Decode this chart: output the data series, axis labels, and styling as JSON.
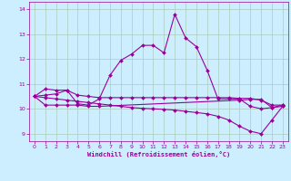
{
  "bg_color": "#cceeff",
  "grid_color": "#aaddcc",
  "line_color": "#990099",
  "xlabel": "Windchill (Refroidissement éolien,°C)",
  "xlim": [
    -0.5,
    23.5
  ],
  "ylim": [
    8.7,
    14.3
  ],
  "yticks": [
    9,
    10,
    11,
    12,
    13,
    14
  ],
  "xticks": [
    0,
    1,
    2,
    3,
    4,
    5,
    6,
    7,
    8,
    9,
    10,
    11,
    12,
    13,
    14,
    15,
    16,
    17,
    18,
    19,
    20,
    21,
    22,
    23
  ],
  "series1_x": [
    0,
    1,
    2,
    3,
    4,
    5,
    6,
    7,
    8,
    9,
    10,
    11,
    12,
    13,
    14,
    15,
    16,
    17,
    18,
    19,
    20,
    21,
    22,
    23
  ],
  "series1_y": [
    10.5,
    10.8,
    10.75,
    10.75,
    10.2,
    10.15,
    10.4,
    11.35,
    11.95,
    12.2,
    12.55,
    12.55,
    12.25,
    13.8,
    12.85,
    12.5,
    11.55,
    10.4,
    10.4,
    10.4,
    10.1,
    10.0,
    10.05,
    10.1
  ],
  "series2_x": [
    0,
    1,
    2,
    3,
    4,
    5,
    6,
    7,
    8,
    9,
    10,
    11,
    12,
    13,
    14,
    15,
    16,
    17,
    18,
    19,
    20,
    21,
    22,
    23
  ],
  "series2_y": [
    10.5,
    10.55,
    10.6,
    10.75,
    10.55,
    10.5,
    10.45,
    10.45,
    10.45,
    10.45,
    10.45,
    10.45,
    10.45,
    10.45,
    10.45,
    10.45,
    10.45,
    10.45,
    10.45,
    10.42,
    10.42,
    10.35,
    10.15,
    10.15
  ],
  "series3_x": [
    0,
    1,
    2,
    3,
    4,
    5,
    6,
    7,
    8,
    9,
    10,
    11,
    12,
    13,
    14,
    15,
    16,
    17,
    18,
    19,
    20,
    21,
    22,
    23
  ],
  "series3_y": [
    10.5,
    10.45,
    10.4,
    10.35,
    10.3,
    10.25,
    10.2,
    10.15,
    10.1,
    10.05,
    10.02,
    10.0,
    9.98,
    9.95,
    9.9,
    9.85,
    9.8,
    9.7,
    9.55,
    9.3,
    9.1,
    9.0,
    9.55,
    10.1
  ],
  "series4_x": [
    0,
    1,
    2,
    3,
    4,
    5,
    6,
    19,
    20,
    21,
    22,
    23
  ],
  "series4_y": [
    10.5,
    10.15,
    10.15,
    10.15,
    10.15,
    10.1,
    10.1,
    10.35,
    10.38,
    10.38,
    10.05,
    10.15
  ]
}
